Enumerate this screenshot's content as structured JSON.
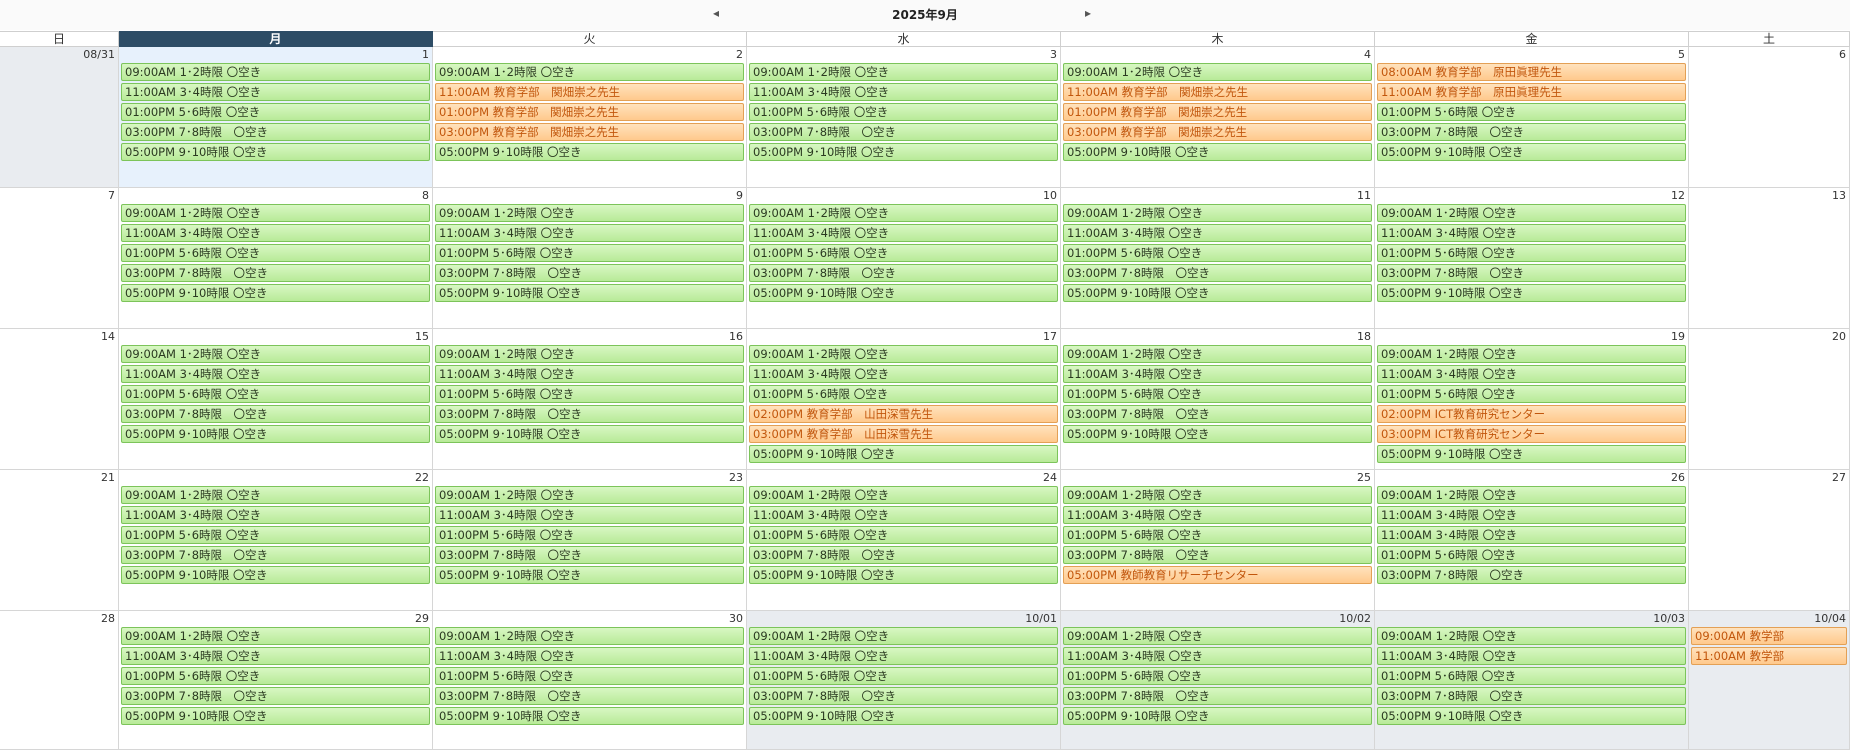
{
  "header": {
    "title": "2025年9月",
    "prev_icon": "◂",
    "next_icon": "▸"
  },
  "weekdays": [
    "日",
    "月",
    "火",
    "水",
    "木",
    "金",
    "土"
  ],
  "active_weekday": 1,
  "colors": {
    "free": "#b8ea98",
    "booked": "#ffc98c",
    "header_active": "#2e4d66",
    "other_month": "#e9ecf0",
    "today": "#e7f1fc"
  },
  "weeks": [
    {
      "days": [
        {
          "label": "08/31",
          "state": "other",
          "events": []
        },
        {
          "label": "1",
          "state": "today",
          "events": [
            {
              "text": "09:00AM 1･2時限 〇空き",
              "kind": "free"
            },
            {
              "text": "11:00AM 3･4時限 〇空き",
              "kind": "free"
            },
            {
              "text": "01:00PM 5･6時限 〇空き",
              "kind": "free"
            },
            {
              "text": "03:00PM 7･8時限　〇空き",
              "kind": "free"
            },
            {
              "text": "05:00PM 9･10時限 〇空き",
              "kind": "free"
            }
          ]
        },
        {
          "label": "2",
          "state": "",
          "events": [
            {
              "text": "09:00AM 1･2時限 〇空き",
              "kind": "free"
            },
            {
              "text": "11:00AM 教育学部　関畑崇之先生",
              "kind": "booked"
            },
            {
              "text": "01:00PM 教育学部　関畑崇之先生",
              "kind": "booked"
            },
            {
              "text": "03:00PM 教育学部　関畑崇之先生",
              "kind": "booked"
            },
            {
              "text": "05:00PM 9･10時限 〇空き",
              "kind": "free"
            }
          ]
        },
        {
          "label": "3",
          "state": "",
          "events": [
            {
              "text": "09:00AM 1･2時限 〇空き",
              "kind": "free"
            },
            {
              "text": "11:00AM 3･4時限 〇空き",
              "kind": "free"
            },
            {
              "text": "01:00PM 5･6時限 〇空き",
              "kind": "free"
            },
            {
              "text": "03:00PM 7･8時限　〇空き",
              "kind": "free"
            },
            {
              "text": "05:00PM 9･10時限 〇空き",
              "kind": "free"
            }
          ]
        },
        {
          "label": "4",
          "state": "",
          "events": [
            {
              "text": "09:00AM 1･2時限 〇空き",
              "kind": "free"
            },
            {
              "text": "11:00AM 教育学部　関畑崇之先生",
              "kind": "booked"
            },
            {
              "text": "01:00PM 教育学部　関畑崇之先生",
              "kind": "booked"
            },
            {
              "text": "03:00PM 教育学部　関畑崇之先生",
              "kind": "booked"
            },
            {
              "text": "05:00PM 9･10時限 〇空き",
              "kind": "free"
            }
          ]
        },
        {
          "label": "5",
          "state": "",
          "events": [
            {
              "text": "08:00AM 教育学部　原田眞理先生",
              "kind": "booked"
            },
            {
              "text": "11:00AM 教育学部　原田眞理先生",
              "kind": "booked"
            },
            {
              "text": "01:00PM 5･6時限 〇空き",
              "kind": "free"
            },
            {
              "text": "03:00PM 7･8時限　〇空き",
              "kind": "free"
            },
            {
              "text": "05:00PM 9･10時限 〇空き",
              "kind": "free"
            }
          ]
        },
        {
          "label": "6",
          "state": "",
          "events": []
        }
      ]
    },
    {
      "days": [
        {
          "label": "7",
          "state": "",
          "events": []
        },
        {
          "label": "8",
          "state": "",
          "events": [
            {
              "text": "09:00AM 1･2時限 〇空き",
              "kind": "free"
            },
            {
              "text": "11:00AM 3･4時限 〇空き",
              "kind": "free"
            },
            {
              "text": "01:00PM 5･6時限 〇空き",
              "kind": "free"
            },
            {
              "text": "03:00PM 7･8時限　〇空き",
              "kind": "free"
            },
            {
              "text": "05:00PM 9･10時限 〇空き",
              "kind": "free"
            }
          ]
        },
        {
          "label": "9",
          "state": "",
          "events": [
            {
              "text": "09:00AM 1･2時限 〇空き",
              "kind": "free"
            },
            {
              "text": "11:00AM 3･4時限 〇空き",
              "kind": "free"
            },
            {
              "text": "01:00PM 5･6時限 〇空き",
              "kind": "free"
            },
            {
              "text": "03:00PM 7･8時限　〇空き",
              "kind": "free"
            },
            {
              "text": "05:00PM 9･10時限 〇空き",
              "kind": "free"
            }
          ]
        },
        {
          "label": "10",
          "state": "",
          "events": [
            {
              "text": "09:00AM 1･2時限 〇空き",
              "kind": "free"
            },
            {
              "text": "11:00AM 3･4時限 〇空き",
              "kind": "free"
            },
            {
              "text": "01:00PM 5･6時限 〇空き",
              "kind": "free"
            },
            {
              "text": "03:00PM 7･8時限　〇空き",
              "kind": "free"
            },
            {
              "text": "05:00PM 9･10時限 〇空き",
              "kind": "free"
            }
          ]
        },
        {
          "label": "11",
          "state": "",
          "events": [
            {
              "text": "09:00AM 1･2時限 〇空き",
              "kind": "free"
            },
            {
              "text": "11:00AM 3･4時限 〇空き",
              "kind": "free"
            },
            {
              "text": "01:00PM 5･6時限 〇空き",
              "kind": "free"
            },
            {
              "text": "03:00PM 7･8時限　〇空き",
              "kind": "free"
            },
            {
              "text": "05:00PM 9･10時限 〇空き",
              "kind": "free"
            }
          ]
        },
        {
          "label": "12",
          "state": "",
          "events": [
            {
              "text": "09:00AM 1･2時限 〇空き",
              "kind": "free"
            },
            {
              "text": "11:00AM 3･4時限 〇空き",
              "kind": "free"
            },
            {
              "text": "01:00PM 5･6時限 〇空き",
              "kind": "free"
            },
            {
              "text": "03:00PM 7･8時限　〇空き",
              "kind": "free"
            },
            {
              "text": "05:00PM 9･10時限 〇空き",
              "kind": "free"
            }
          ]
        },
        {
          "label": "13",
          "state": "",
          "events": []
        }
      ]
    },
    {
      "days": [
        {
          "label": "14",
          "state": "",
          "events": []
        },
        {
          "label": "15",
          "state": "",
          "events": [
            {
              "text": "09:00AM 1･2時限 〇空き",
              "kind": "free"
            },
            {
              "text": "11:00AM 3･4時限 〇空き",
              "kind": "free"
            },
            {
              "text": "01:00PM 5･6時限 〇空き",
              "kind": "free"
            },
            {
              "text": "03:00PM 7･8時限　〇空き",
              "kind": "free"
            },
            {
              "text": "05:00PM 9･10時限 〇空き",
              "kind": "free"
            }
          ]
        },
        {
          "label": "16",
          "state": "",
          "events": [
            {
              "text": "09:00AM 1･2時限 〇空き",
              "kind": "free"
            },
            {
              "text": "11:00AM 3･4時限 〇空き",
              "kind": "free"
            },
            {
              "text": "01:00PM 5･6時限 〇空き",
              "kind": "free"
            },
            {
              "text": "03:00PM 7･8時限　〇空き",
              "kind": "free"
            },
            {
              "text": "05:00PM 9･10時限 〇空き",
              "kind": "free"
            }
          ]
        },
        {
          "label": "17",
          "state": "",
          "events": [
            {
              "text": "09:00AM 1･2時限 〇空き",
              "kind": "free"
            },
            {
              "text": "11:00AM 3･4時限 〇空き",
              "kind": "free"
            },
            {
              "text": "01:00PM 5･6時限 〇空き",
              "kind": "free"
            },
            {
              "text": "02:00PM 教育学部　山田深雪先生",
              "kind": "booked"
            },
            {
              "text": "03:00PM 教育学部　山田深雪先生",
              "kind": "booked"
            },
            {
              "text": "05:00PM 9･10時限 〇空き",
              "kind": "free"
            }
          ]
        },
        {
          "label": "18",
          "state": "",
          "events": [
            {
              "text": "09:00AM 1･2時限 〇空き",
              "kind": "free"
            },
            {
              "text": "11:00AM 3･4時限 〇空き",
              "kind": "free"
            },
            {
              "text": "01:00PM 5･6時限 〇空き",
              "kind": "free"
            },
            {
              "text": "03:00PM 7･8時限　〇空き",
              "kind": "free"
            },
            {
              "text": "05:00PM 9･10時限 〇空き",
              "kind": "free"
            }
          ]
        },
        {
          "label": "19",
          "state": "",
          "events": [
            {
              "text": "09:00AM 1･2時限 〇空き",
              "kind": "free"
            },
            {
              "text": "11:00AM 3･4時限 〇空き",
              "kind": "free"
            },
            {
              "text": "01:00PM 5･6時限 〇空き",
              "kind": "free"
            },
            {
              "text": "02:00PM ICT教育研究センター",
              "kind": "booked"
            },
            {
              "text": "03:00PM ICT教育研究センター",
              "kind": "booked"
            },
            {
              "text": "05:00PM 9･10時限 〇空き",
              "kind": "free"
            }
          ]
        },
        {
          "label": "20",
          "state": "",
          "events": []
        }
      ]
    },
    {
      "days": [
        {
          "label": "21",
          "state": "",
          "events": []
        },
        {
          "label": "22",
          "state": "",
          "events": [
            {
              "text": "09:00AM 1･2時限 〇空き",
              "kind": "free"
            },
            {
              "text": "11:00AM 3･4時限 〇空き",
              "kind": "free"
            },
            {
              "text": "01:00PM 5･6時限 〇空き",
              "kind": "free"
            },
            {
              "text": "03:00PM 7･8時限　〇空き",
              "kind": "free"
            },
            {
              "text": "05:00PM 9･10時限 〇空き",
              "kind": "free"
            }
          ]
        },
        {
          "label": "23",
          "state": "",
          "events": [
            {
              "text": "09:00AM 1･2時限 〇空き",
              "kind": "free"
            },
            {
              "text": "11:00AM 3･4時限 〇空き",
              "kind": "free"
            },
            {
              "text": "01:00PM 5･6時限 〇空き",
              "kind": "free"
            },
            {
              "text": "03:00PM 7･8時限　〇空き",
              "kind": "free"
            },
            {
              "text": "05:00PM 9･10時限 〇空き",
              "kind": "free"
            }
          ]
        },
        {
          "label": "24",
          "state": "",
          "events": [
            {
              "text": "09:00AM 1･2時限 〇空き",
              "kind": "free"
            },
            {
              "text": "11:00AM 3･4時限 〇空き",
              "kind": "free"
            },
            {
              "text": "01:00PM 5･6時限 〇空き",
              "kind": "free"
            },
            {
              "text": "03:00PM 7･8時限　〇空き",
              "kind": "free"
            },
            {
              "text": "05:00PM 9･10時限 〇空き",
              "kind": "free"
            }
          ]
        },
        {
          "label": "25",
          "state": "",
          "events": [
            {
              "text": "09:00AM 1･2時限 〇空き",
              "kind": "free"
            },
            {
              "text": "11:00AM 3･4時限 〇空き",
              "kind": "free"
            },
            {
              "text": "01:00PM 5･6時限 〇空き",
              "kind": "free"
            },
            {
              "text": "03:00PM 7･8時限　〇空き",
              "kind": "free"
            },
            {
              "text": "05:00PM 教師教育リサーチセンター",
              "kind": "booked"
            }
          ]
        },
        {
          "label": "26",
          "state": "",
          "events": [
            {
              "text": "09:00AM 1･2時限 〇空き",
              "kind": "free"
            },
            {
              "text": "11:00AM 3･4時限 〇空き",
              "kind": "free"
            },
            {
              "text": "11:00AM 3･4時限 〇空き",
              "kind": "free"
            },
            {
              "text": "01:00PM 5･6時限 〇空き",
              "kind": "free"
            },
            {
              "text": "03:00PM 7･8時限　〇空き",
              "kind": "free"
            }
          ]
        },
        {
          "label": "27",
          "state": "",
          "events": []
        }
      ]
    },
    {
      "days": [
        {
          "label": "28",
          "state": "",
          "events": []
        },
        {
          "label": "29",
          "state": "",
          "events": [
            {
              "text": "09:00AM 1･2時限 〇空き",
              "kind": "free"
            },
            {
              "text": "11:00AM 3･4時限 〇空き",
              "kind": "free"
            },
            {
              "text": "01:00PM 5･6時限 〇空き",
              "kind": "free"
            },
            {
              "text": "03:00PM 7･8時限　〇空き",
              "kind": "free"
            },
            {
              "text": "05:00PM 9･10時限 〇空き",
              "kind": "free"
            }
          ]
        },
        {
          "label": "30",
          "state": "",
          "events": [
            {
              "text": "09:00AM 1･2時限 〇空き",
              "kind": "free"
            },
            {
              "text": "11:00AM 3･4時限 〇空き",
              "kind": "free"
            },
            {
              "text": "01:00PM 5･6時限 〇空き",
              "kind": "free"
            },
            {
              "text": "03:00PM 7･8時限　〇空き",
              "kind": "free"
            },
            {
              "text": "05:00PM 9･10時限 〇空き",
              "kind": "free"
            }
          ]
        },
        {
          "label": "10/01",
          "state": "other",
          "events": [
            {
              "text": "09:00AM 1･2時限 〇空き",
              "kind": "free"
            },
            {
              "text": "11:00AM 3･4時限 〇空き",
              "kind": "free"
            },
            {
              "text": "01:00PM 5･6時限 〇空き",
              "kind": "free"
            },
            {
              "text": "03:00PM 7･8時限　〇空き",
              "kind": "free"
            },
            {
              "text": "05:00PM 9･10時限 〇空き",
              "kind": "free"
            }
          ]
        },
        {
          "label": "10/02",
          "state": "other",
          "events": [
            {
              "text": "09:00AM 1･2時限 〇空き",
              "kind": "free"
            },
            {
              "text": "11:00AM 3･4時限 〇空き",
              "kind": "free"
            },
            {
              "text": "01:00PM 5･6時限 〇空き",
              "kind": "free"
            },
            {
              "text": "03:00PM 7･8時限　〇空き",
              "kind": "free"
            },
            {
              "text": "05:00PM 9･10時限 〇空き",
              "kind": "free"
            }
          ]
        },
        {
          "label": "10/03",
          "state": "other",
          "events": [
            {
              "text": "09:00AM 1･2時限 〇空き",
              "kind": "free"
            },
            {
              "text": "11:00AM 3･4時限 〇空き",
              "kind": "free"
            },
            {
              "text": "01:00PM 5･6時限 〇空き",
              "kind": "free"
            },
            {
              "text": "03:00PM 7･8時限　〇空き",
              "kind": "free"
            },
            {
              "text": "05:00PM 9･10時限 〇空き",
              "kind": "free"
            }
          ]
        },
        {
          "label": "10/04",
          "state": "other",
          "events": [
            {
              "text": "09:00AM 教学部",
              "kind": "booked"
            },
            {
              "text": "11:00AM 教学部",
              "kind": "booked"
            }
          ]
        }
      ]
    }
  ]
}
